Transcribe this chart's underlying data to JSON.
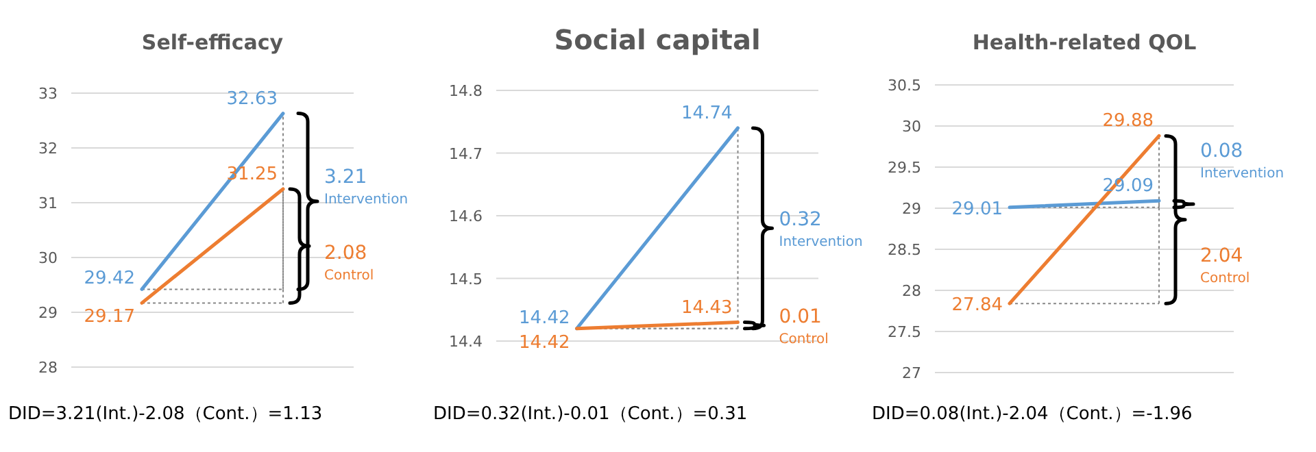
{
  "chart_data": [
    {
      "type": "line",
      "title": "Self-efficacy",
      "categories": [
        null,
        null
      ],
      "ylim": [
        28,
        33
      ],
      "yticks": [
        28,
        29,
        30,
        31,
        32,
        33
      ],
      "grid": "y",
      "tick_labels": "y",
      "data_labels": true,
      "series": [
        {
          "name": "Intervention",
          "color": "#5b9bd5",
          "values": [
            29.42,
            32.63
          ]
        },
        {
          "name": "Control",
          "color": "#ed7d31",
          "values": [
            29.17,
            31.25
          ]
        }
      ],
      "annotations": [
        "3.21",
        "2.08",
        "DID=3.21(Int.)-2.08（Cont.）=1.13"
      ]
    },
    {
      "type": "line",
      "title": "Social capital",
      "categories": [
        null,
        null
      ],
      "ylim": [
        14.4,
        14.8
      ],
      "yticks": [
        14.4,
        14.5,
        14.6,
        14.7,
        14.8
      ],
      "grid": "y",
      "tick_labels": "y",
      "data_labels": true,
      "series": [
        {
          "name": "Intervention",
          "color": "#5b9bd5",
          "values": [
            14.42,
            14.74
          ]
        },
        {
          "name": "Control",
          "color": "#ed7d31",
          "values": [
            14.42,
            14.43
          ]
        }
      ],
      "annotations": [
        "0.32",
        "0.01",
        "DID=0.32(Int.)-0.01（Cont.）=0.31"
      ]
    },
    {
      "type": "line",
      "title": "Health-related QOL",
      "categories": [
        null,
        null
      ],
      "ylim": [
        27,
        30.5
      ],
      "yticks": [
        27,
        27.5,
        28,
        28.5,
        29,
        29.5,
        30,
        30.5
      ],
      "grid": "y",
      "tick_labels": "y",
      "data_labels": true,
      "series": [
        {
          "name": "Intervention",
          "color": "#5b9bd5",
          "values": [
            29.01,
            29.09
          ]
        },
        {
          "name": "Control",
          "color": "#ed7d31",
          "values": [
            27.84,
            29.88
          ]
        }
      ],
      "annotations": [
        "0.08",
        "2.04",
        "DID=0.08(Int.)-2.04（Cont.）=-1.96"
      ]
    }
  ]
}
